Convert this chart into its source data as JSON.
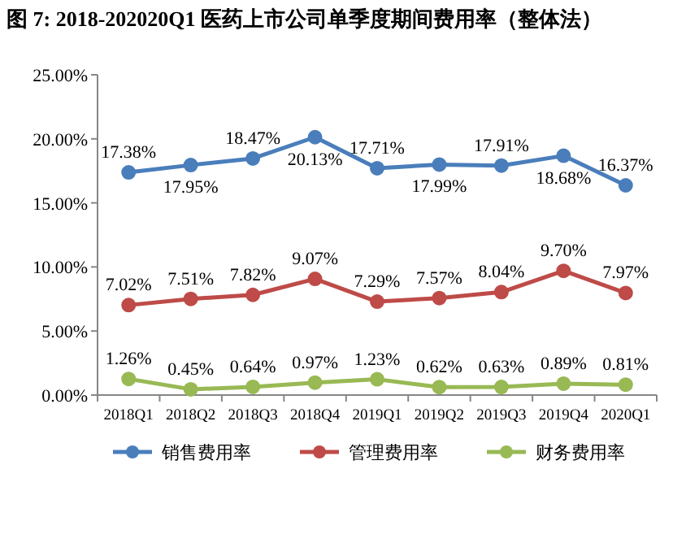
{
  "chart_data": {
    "type": "line",
    "title": "图 7: 2018-202020Q1 医药上市公司单季度期间费用率（整体法）",
    "categories": [
      "2018Q1",
      "2018Q2",
      "2018Q3",
      "2018Q4",
      "2019Q1",
      "2019Q2",
      "2019Q3",
      "2019Q4",
      "2020Q1"
    ],
    "series": [
      {
        "name": "销售费用率",
        "color": "#4a7ebb",
        "values": [
          17.38,
          17.95,
          18.47,
          20.13,
          17.71,
          17.99,
          17.91,
          18.68,
          16.37
        ],
        "value_labels": [
          "17.38%",
          "17.95%",
          "18.47%",
          "20.13%",
          "17.71%",
          "17.99%",
          "17.91%",
          "18.68%",
          "16.37%"
        ]
      },
      {
        "name": "管理费用率",
        "color": "#be4b48",
        "values": [
          7.02,
          7.51,
          7.82,
          9.07,
          7.29,
          7.57,
          8.04,
          9.7,
          7.97
        ],
        "value_labels": [
          "7.02%",
          "7.51%",
          "7.82%",
          "9.07%",
          "7.29%",
          "7.57%",
          "8.04%",
          "9.70%",
          "7.97%"
        ]
      },
      {
        "name": "财务费用率",
        "color": "#98b954",
        "values": [
          1.26,
          0.45,
          0.64,
          0.97,
          1.23,
          0.62,
          0.63,
          0.89,
          0.81
        ],
        "value_labels": [
          "1.26%",
          "0.45%",
          "0.64%",
          "0.97%",
          "1.23%",
          "0.62%",
          "0.63%",
          "0.89%",
          "0.81%"
        ]
      }
    ],
    "ylim": [
      0,
      25
    ],
    "yticks": [
      {
        "value": 0,
        "label": "0.00%"
      },
      {
        "value": 5,
        "label": "5.00%"
      },
      {
        "value": 10,
        "label": "10.00%"
      },
      {
        "value": 15,
        "label": "15.00%"
      },
      {
        "value": 20,
        "label": "20.00%"
      },
      {
        "value": 25,
        "label": "25.00%"
      }
    ],
    "grid": false,
    "legend": "bottom",
    "marker": "circle",
    "line_style": "solid"
  }
}
